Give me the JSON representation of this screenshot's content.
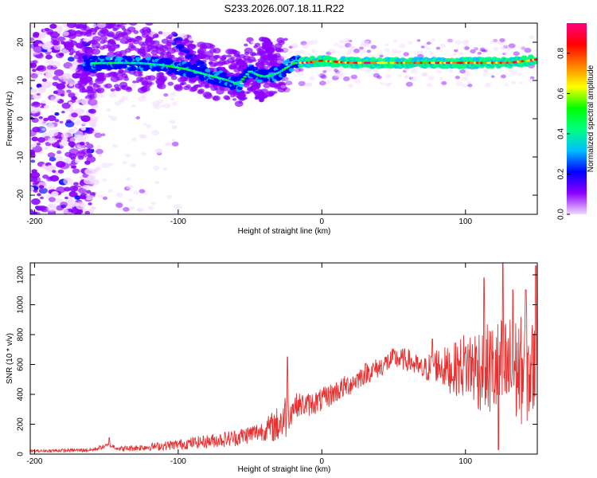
{
  "title": "S233.2026.007.18.11.R22",
  "chart_data": [
    {
      "type": "heatmap",
      "xlabel": "Height of straight line (km)",
      "ylabel": "Frequency (Hz)",
      "xlim": [
        -203,
        150
      ],
      "ylim": [
        -25,
        25
      ],
      "xticks": [
        -200,
        -100,
        0,
        100
      ],
      "xtick_labels": [
        "-200",
        "-100",
        "0",
        "100"
      ],
      "yticks": [
        -20,
        -10,
        0,
        10,
        20
      ],
      "ytick_labels": [
        "-20",
        "-10",
        "0",
        "10",
        "20"
      ],
      "colorbar": {
        "label": "Normalized spectral amplitude",
        "range": [
          0,
          0.95
        ],
        "ticks": [
          0,
          0.2,
          0.4,
          0.6,
          0.8
        ],
        "tick_labels": [
          "0.0",
          "0.2",
          "0.4",
          "0.6",
          "0.8"
        ],
        "colormap": [
          "#f2d9ff",
          "#8c00ff",
          "#0000ff",
          "#00bfff",
          "#00ff80",
          "#00ff00",
          "#ffff00",
          "#ff8000",
          "#ff0000",
          "#ff0080"
        ]
      },
      "ridge": [
        {
          "x": -160,
          "y": 14.5
        },
        {
          "x": -140,
          "y": 14.6
        },
        {
          "x": -125,
          "y": 14.5
        },
        {
          "x": -110,
          "y": 14.0
        },
        {
          "x": -95,
          "y": 13.0
        },
        {
          "x": -80,
          "y": 11.5
        },
        {
          "x": -65,
          "y": 10.0
        },
        {
          "x": -58,
          "y": 9.0
        },
        {
          "x": -50,
          "y": 12.5
        },
        {
          "x": -45,
          "y": 11.5
        },
        {
          "x": -40,
          "y": 11.0
        },
        {
          "x": -30,
          "y": 12.0
        },
        {
          "x": -20,
          "y": 14.5
        },
        {
          "x": -10,
          "y": 14.7
        },
        {
          "x": 0,
          "y": 15.2
        },
        {
          "x": 20,
          "y": 14.6
        },
        {
          "x": 50,
          "y": 14.6
        },
        {
          "x": 100,
          "y": 14.6
        },
        {
          "x": 130,
          "y": 14.6
        },
        {
          "x": 150,
          "y": 15.5
        }
      ]
    },
    {
      "type": "line",
      "xlabel": "Height of straight line (km)",
      "ylabel": "SNR (10 * v/v)",
      "xlim": [
        -203,
        150
      ],
      "ylim": [
        0,
        1280
      ],
      "xticks": [
        -200,
        -100,
        0,
        100
      ],
      "xtick_labels": [
        "-200",
        "-100",
        "0",
        "100"
      ],
      "yticks": [
        0,
        200,
        400,
        600,
        800,
        1000,
        1200
      ],
      "ytick_labels": [
        "0",
        "200",
        "400",
        "600",
        "800",
        "1000",
        "1200"
      ],
      "series": [
        {
          "name": "SNR",
          "color": "#e83030",
          "trend": [
            {
              "x": -203,
              "y": 20
            },
            {
              "x": -160,
              "y": 28
            },
            {
              "x": -148,
              "y": 60
            },
            {
              "x": -140,
              "y": 35
            },
            {
              "x": -110,
              "y": 55
            },
            {
              "x": -80,
              "y": 85
            },
            {
              "x": -60,
              "y": 110
            },
            {
              "x": -40,
              "y": 160
            },
            {
              "x": -30,
              "y": 200
            },
            {
              "x": -24,
              "y": 270
            },
            {
              "x": -18,
              "y": 330
            },
            {
              "x": -10,
              "y": 330
            },
            {
              "x": 0,
              "y": 360
            },
            {
              "x": 10,
              "y": 420
            },
            {
              "x": 20,
              "y": 470
            },
            {
              "x": 30,
              "y": 540
            },
            {
              "x": 40,
              "y": 580
            },
            {
              "x": 50,
              "y": 640
            },
            {
              "x": 60,
              "y": 630
            },
            {
              "x": 70,
              "y": 560
            },
            {
              "x": 80,
              "y": 600
            },
            {
              "x": 90,
              "y": 560
            },
            {
              "x": 100,
              "y": 600
            },
            {
              "x": 110,
              "y": 580
            },
            {
              "x": 120,
              "y": 560
            },
            {
              "x": 130,
              "y": 560
            },
            {
              "x": 140,
              "y": 560
            },
            {
              "x": 150,
              "y": 560
            }
          ],
          "noise": [
            {
              "x": -203,
              "a": 8
            },
            {
              "x": -150,
              "a": 15
            },
            {
              "x": -120,
              "a": 25
            },
            {
              "x": -80,
              "a": 45
            },
            {
              "x": -40,
              "a": 70
            },
            {
              "x": -25,
              "a": 160
            },
            {
              "x": -20,
              "a": 80
            },
            {
              "x": 0,
              "a": 80
            },
            {
              "x": 40,
              "a": 70
            },
            {
              "x": 70,
              "a": 80
            },
            {
              "x": 90,
              "a": 160
            },
            {
              "x": 110,
              "a": 300
            },
            {
              "x": 130,
              "a": 380
            },
            {
              "x": 150,
              "a": 350
            }
          ],
          "spikes": [
            {
              "x": -148,
              "y": 110
            },
            {
              "x": -24,
              "y": 650
            },
            {
              "x": 77,
              "y": 770
            },
            {
              "x": 113,
              "y": 1180
            },
            {
              "x": 126,
              "y": 1280
            },
            {
              "x": 133,
              "y": 1100
            },
            {
              "x": 142,
              "y": 1100
            },
            {
              "x": 149,
              "y": 1260
            },
            {
              "x": 123,
              "y": 30
            }
          ]
        }
      ]
    }
  ]
}
